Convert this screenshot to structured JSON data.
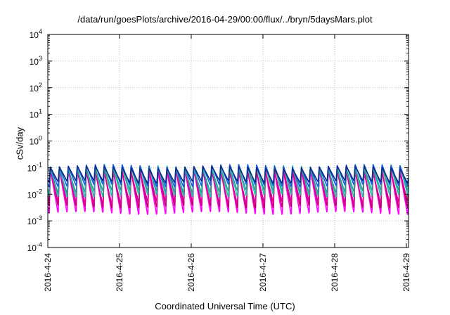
{
  "chart_data": {
    "type": "line",
    "title": "/data/run/goesPlots/archive/2016-04-29/00:00/flux/../bryn/5daysMars.plot",
    "xlabel": "Coordinated Universal Time (UTC)",
    "ylabel": "cSv/day",
    "y_scale": "log",
    "ylim": [
      0.0001,
      10000
    ],
    "y_ticks": [
      {
        "exp": -4,
        "base": "10",
        "sup": "-4"
      },
      {
        "exp": -3,
        "base": "10",
        "sup": "-3"
      },
      {
        "exp": -2,
        "base": "10",
        "sup": "-2"
      },
      {
        "exp": -1,
        "base": "10",
        "sup": "-1"
      },
      {
        "exp": 0,
        "base": "10",
        "sup": "0"
      },
      {
        "exp": 1,
        "base": "10",
        "sup": "1"
      },
      {
        "exp": 2,
        "base": "10",
        "sup": "2"
      },
      {
        "exp": 3,
        "base": "10",
        "sup": "3"
      },
      {
        "exp": 4,
        "base": "10",
        "sup": "4"
      }
    ],
    "x_ticks": [
      "2016-4-24",
      "2016-4-25",
      "2016-4-26",
      "2016-4-27",
      "2016-4-28",
      "2016-4-29"
    ],
    "xlim_days": [
      0,
      5.03
    ],
    "cycle_hours": 3,
    "grid": true,
    "legend": "none",
    "series": [
      {
        "color": "#ff00ff",
        "peak": 0.085,
        "trough": 0.0017
      },
      {
        "color": "#c2006b",
        "peak": 0.09,
        "trough": 0.003
      },
      {
        "color": "#e0009a",
        "peak": 0.075,
        "trough": 0.0045
      },
      {
        "color": "#20c0a0",
        "peak": 0.11,
        "trough": 0.008
      },
      {
        "color": "#2aa198",
        "peak": 0.1,
        "trough": 0.012
      },
      {
        "color": "#1060e0",
        "peak": 0.12,
        "trough": 0.02
      },
      {
        "color": "#0a2a8a",
        "peak": 0.105,
        "trough": 0.028
      }
    ]
  }
}
